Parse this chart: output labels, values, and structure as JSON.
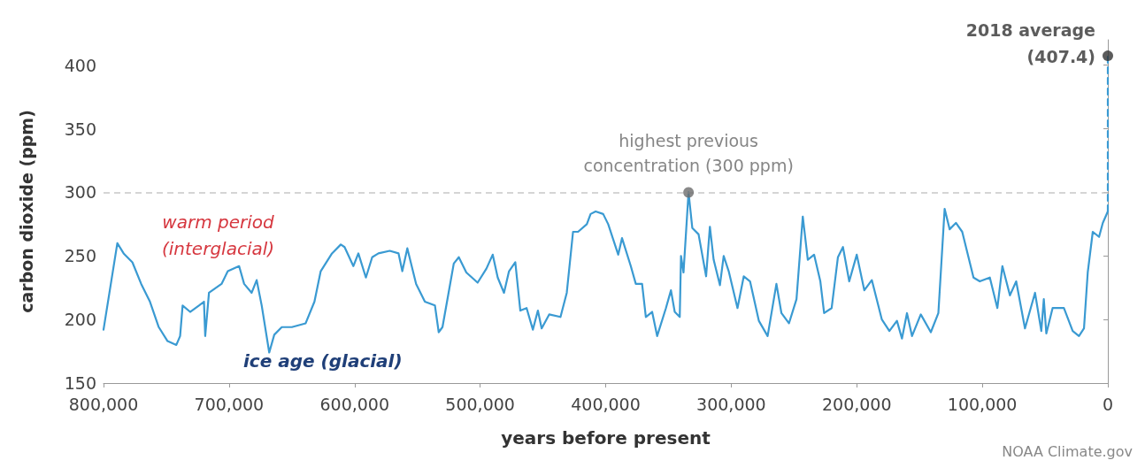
{
  "chart_data": {
    "type": "line",
    "xlabel": "years before present",
    "ylabel": "carbon dioxide (ppm)",
    "xlim": [
      800000,
      0
    ],
    "xticks": [
      {
        "value": 800000,
        "label": "800,000"
      },
      {
        "value": 700000,
        "label": "700,000"
      },
      {
        "value": 600000,
        "label": "600,000"
      },
      {
        "value": 500000,
        "label": "500,000"
      },
      {
        "value": 400000,
        "label": "400,000"
      },
      {
        "value": 300000,
        "label": "300,000"
      },
      {
        "value": 200000,
        "label": "200,000"
      },
      {
        "value": 100000,
        "label": "100,000"
      },
      0
    ],
    "ylim": [
      150,
      420
    ],
    "yticks": [
      150,
      200,
      250,
      300,
      350,
      400
    ],
    "grid": false,
    "marker": "none",
    "line_style": "solid",
    "series": [
      {
        "color": "#3a9ad2",
        "x": [
          800000,
          789000,
          784000,
          777000,
          770000,
          763000,
          756000,
          749000,
          742000,
          739000,
          737000,
          731000,
          724000,
          720000,
          719000,
          716000,
          706000,
          701000,
          692000,
          688000,
          682000,
          678000,
          674000,
          668000,
          664000,
          658000,
          650000,
          639000,
          632000,
          627000,
          618000,
          611000,
          608000,
          601000,
          597000,
          591000,
          586000,
          581000,
          572000,
          565000,
          562000,
          558000,
          551000,
          544000,
          536000,
          533000,
          530000,
          521000,
          517000,
          511000,
          502000,
          495000,
          490000,
          486000,
          481000,
          477000,
          472000,
          468000,
          463000,
          458000,
          454000,
          451000,
          445000,
          436000,
          431000,
          426000,
          422000,
          415000,
          412000,
          408000,
          402000,
          398000,
          394000,
          390000,
          387000,
          380000,
          376000,
          371000,
          368000,
          363000,
          359000,
          352000,
          348000,
          345000,
          341000,
          340000,
          338000,
          334000,
          331000,
          326000,
          320000,
          317000,
          314000,
          309000,
          306000,
          302000,
          295000,
          290000,
          285000,
          278000,
          271000,
          264000,
          260000,
          254000,
          248000,
          243000,
          239000,
          234000,
          229000,
          226000,
          220000,
          215000,
          211000,
          206000,
          200000,
          194000,
          188000,
          180000,
          174000,
          168000,
          164000,
          160000,
          156000,
          149000,
          141000,
          135000,
          130000,
          126000,
          121000,
          116000,
          107000,
          102000,
          94000,
          88000,
          84000,
          78000,
          73000,
          66000,
          58000,
          53000,
          51000,
          49000,
          44000,
          35000,
          28000,
          23000,
          19000,
          16000,
          12000,
          7000,
          4000,
          0
        ],
        "values": [
          192,
          260,
          252,
          245,
          228,
          214,
          194,
          183,
          180,
          187,
          211,
          206,
          211,
          214,
          187,
          221,
          228,
          238,
          242,
          228,
          221,
          231,
          211,
          174,
          188,
          194,
          194,
          197,
          214,
          238,
          252,
          259,
          257,
          242,
          252,
          233,
          249,
          252,
          254,
          252,
          238,
          256,
          228,
          214,
          211,
          190,
          194,
          244,
          249,
          237,
          229,
          240,
          251,
          233,
          221,
          238,
          245,
          207,
          209,
          192,
          207,
          193,
          204,
          202,
          221,
          269,
          269,
          275,
          283,
          285,
          283,
          275,
          263,
          251,
          264,
          242,
          228,
          228,
          202,
          206,
          187,
          209,
          223,
          206,
          202,
          250,
          237,
          300,
          272,
          267,
          234,
          273,
          247,
          227,
          250,
          238,
          209,
          234,
          230,
          199,
          187,
          228,
          205,
          197,
          216,
          281,
          247,
          251,
          230,
          205,
          209,
          249,
          257,
          230,
          251,
          223,
          231,
          200,
          191,
          199,
          185,
          205,
          187,
          204,
          190,
          205,
          287,
          271,
          276,
          269,
          233,
          230,
          233,
          209,
          242,
          219,
          230,
          193,
          221,
          191,
          216,
          189,
          209,
          209,
          191,
          187,
          193,
          237,
          269,
          265,
          276,
          285
        ]
      },
      {
        "color": "#3a9ad2",
        "line_style": "dashed",
        "x": [
          0,
          0
        ],
        "values": [
          285,
          407.4
        ]
      },
      {
        "type": "scatter",
        "color": "#333333",
        "marker": "circle",
        "x": [
          0
        ],
        "values": [
          407.4
        ]
      }
    ],
    "ref_lines": [
      {
        "axis": "y",
        "value": 300,
        "color": "#c8c8c8",
        "line_style": "dashed"
      }
    ],
    "annotations": [
      {
        "text": "highest previous\nconcentration (300 ppm)",
        "x": 334000,
        "y": 300
      },
      {
        "text": "2018 average\n(407.4)",
        "x": 0,
        "y": 407.4
      },
      "warm period\n(interglacial)",
      "ice age (glacial)",
      "NOAA Climate.gov"
    ]
  }
}
